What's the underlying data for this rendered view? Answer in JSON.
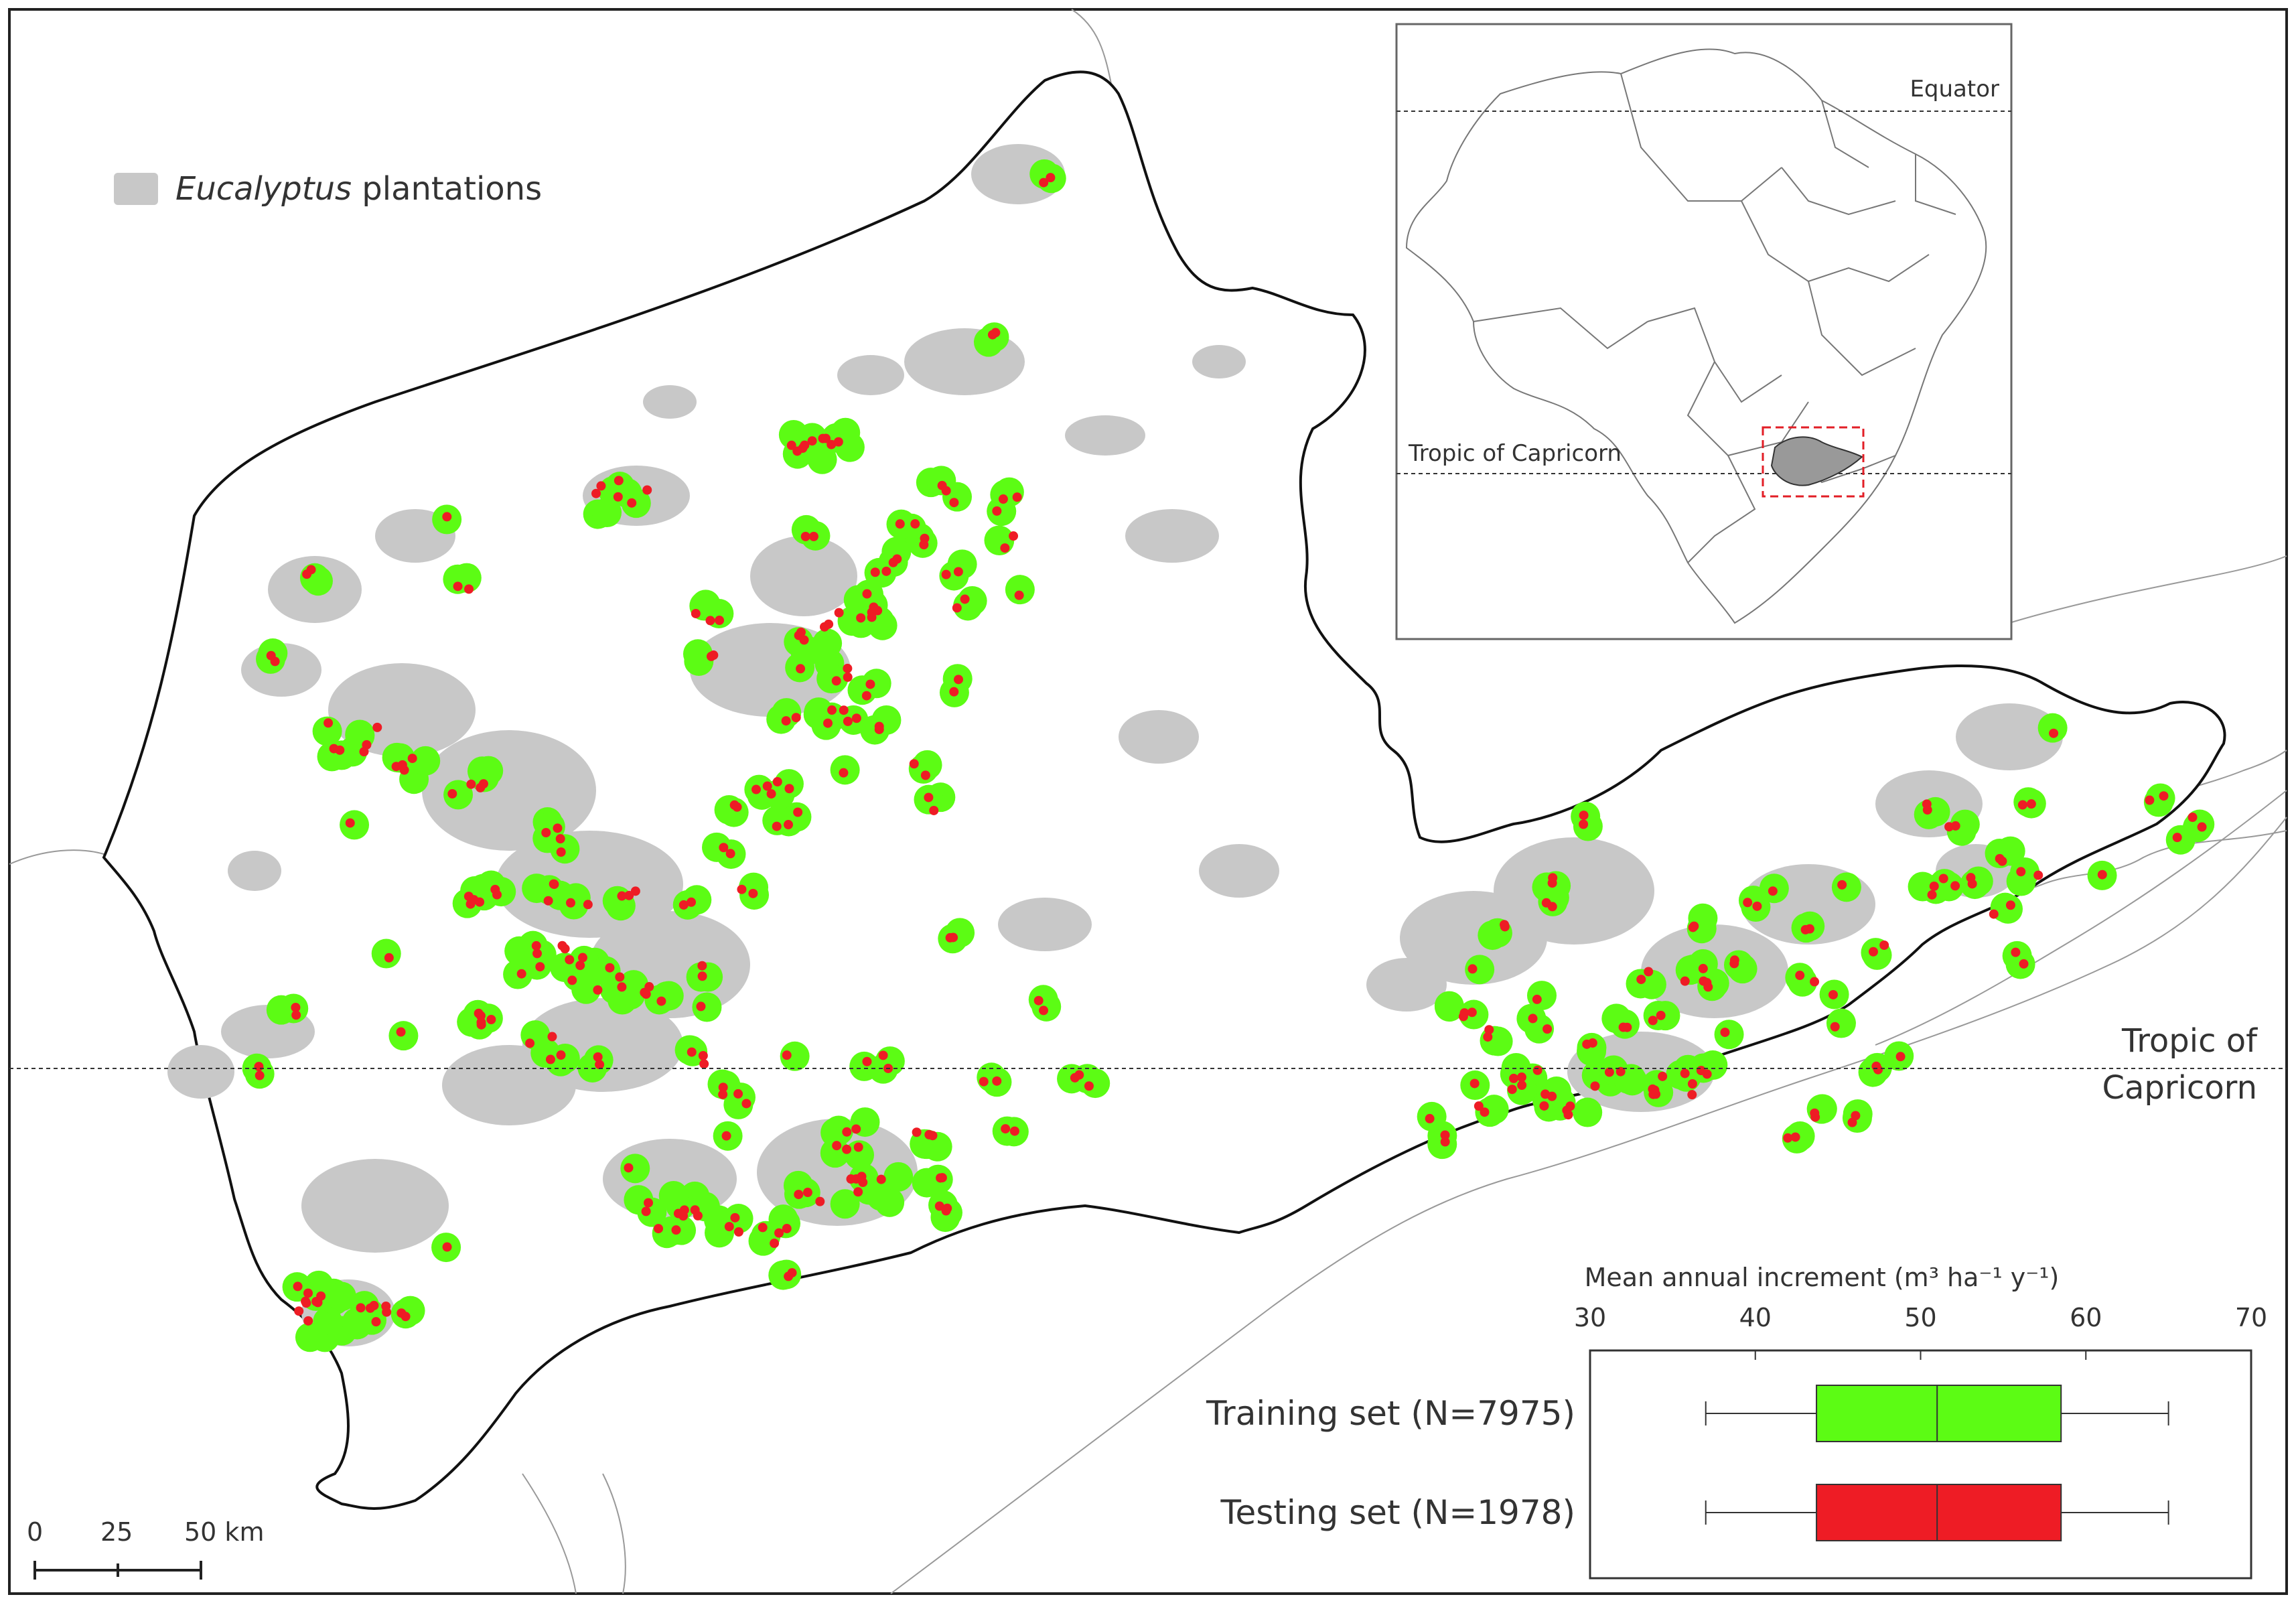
{
  "legend": {
    "label_italic": "Eucalyptus",
    "label_rest": " plantations",
    "swatch_color": "#c8c8c8"
  },
  "lines": {
    "equator_label": "Equator",
    "tropic_inset_label": "Tropic of Capricorn",
    "tropic_main_label_1": "Tropic of",
    "tropic_main_label_2": "Capricorn"
  },
  "scalebar": {
    "ticks": [
      "0",
      "25",
      "50 km"
    ]
  },
  "chart_data": {
    "type": "box",
    "title": "Mean annual increment (m³ ha⁻¹ y⁻¹)",
    "axis": {
      "min": 30,
      "max": 70,
      "ticks": [
        30,
        40,
        50,
        60,
        70
      ]
    },
    "series": [
      {
        "name": "Training set (N=7975)",
        "color": "#5cfc14",
        "whisker_low": 37,
        "q1": 43.7,
        "median": 51,
        "q3": 58.5,
        "whisker_high": 65
      },
      {
        "name": "Testing set (N=1978)",
        "color": "#ee1c25",
        "whisker_low": 37,
        "q1": 43.7,
        "median": 51,
        "q3": 58.5,
        "whisker_high": 65
      }
    ]
  },
  "colors": {
    "training_points": "#5cfc14",
    "testing_points": "#ee1c25",
    "study_area_inset": "#999999",
    "inset_box": "#e21e26"
  }
}
